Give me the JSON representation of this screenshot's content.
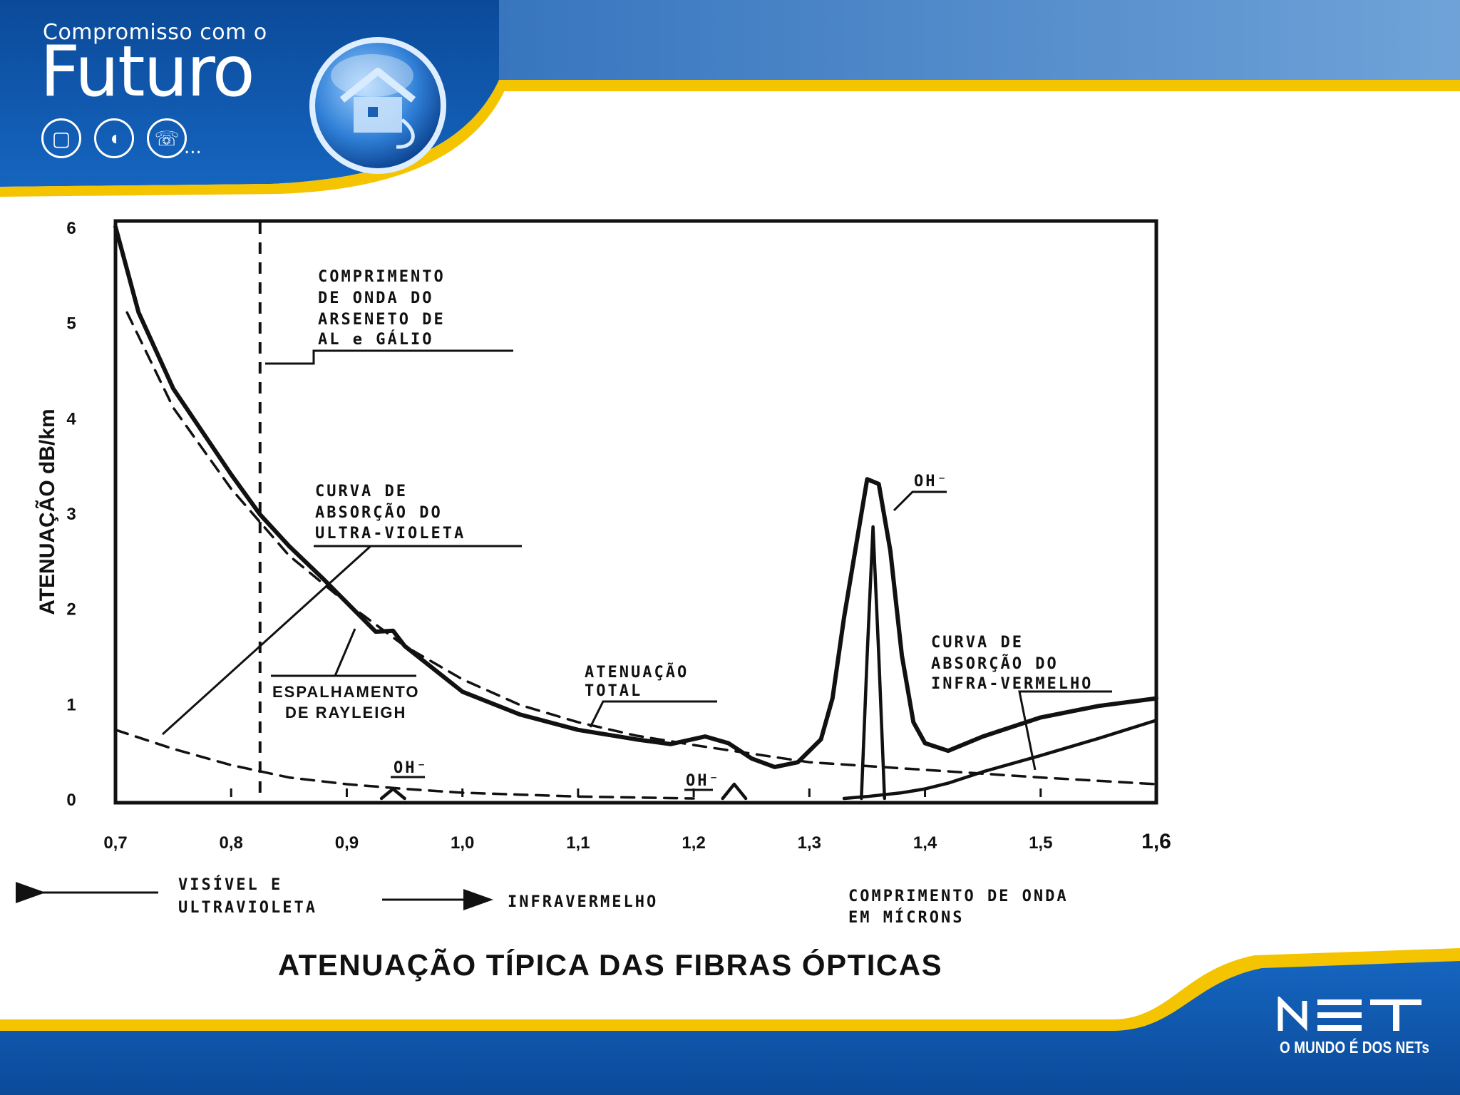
{
  "header": {
    "tagline": "Compromisso com o",
    "brand": "Futuro",
    "ellipsis": "...",
    "icons": [
      "tv-icon",
      "mouse-icon",
      "phone-icon"
    ],
    "orb_icon": "house-icon"
  },
  "footer": {
    "logo_text": "NET",
    "slogan": "O MUNDO É DOS NETs"
  },
  "colors": {
    "brand_blue": "#0d4f9c",
    "accent_yellow": "#f5c400",
    "curve": "#111111"
  },
  "chart_data": {
    "type": "line",
    "title": "ATENUAÇÃO TÍPICA DAS FIBRAS ÓPTICAS",
    "ylabel": "ATENUAÇÃO dB/km",
    "xlabel": "COMPRIMENTO DE ONDA EM MÍCRONS",
    "xlim": [
      0.7,
      1.6
    ],
    "ylim": [
      0,
      6
    ],
    "x_ticks": [
      "0,7",
      "0,8",
      "0,9",
      "1,0",
      "1,1",
      "1,2",
      "1,3",
      "1,4",
      "1,5",
      "1,6"
    ],
    "y_ticks": [
      "0",
      "1",
      "2",
      "3",
      "4",
      "5",
      "6"
    ],
    "vertical_marker_x": 0.825,
    "series": [
      {
        "id": "atenuacao-total",
        "style": "solid-bold",
        "x": [
          0.7,
          0.72,
          0.75,
          0.8,
          0.825,
          0.85,
          0.88,
          0.925,
          0.94,
          0.95,
          1.0,
          1.05,
          1.1,
          1.15,
          1.18,
          1.21,
          1.23,
          1.25,
          1.27,
          1.29,
          1.31,
          1.32,
          1.33,
          1.35,
          1.36,
          1.37,
          1.38,
          1.39,
          1.4,
          1.42,
          1.45,
          1.5,
          1.55,
          1.6
        ],
        "y": [
          6.0,
          5.1,
          4.3,
          3.4,
          2.98,
          2.65,
          2.3,
          1.75,
          1.76,
          1.6,
          1.12,
          0.88,
          0.72,
          0.62,
          0.57,
          0.65,
          0.58,
          0.42,
          0.33,
          0.38,
          0.62,
          1.05,
          1.9,
          3.35,
          3.3,
          2.6,
          1.5,
          0.8,
          0.58,
          0.5,
          0.65,
          0.85,
          0.97,
          1.05
        ]
      },
      {
        "id": "rayleigh",
        "style": "dashed",
        "x": [
          0.71,
          0.75,
          0.8,
          0.85,
          0.9,
          0.95,
          1.0,
          1.05,
          1.1,
          1.15,
          1.2,
          1.25,
          1.3,
          1.4,
          1.5,
          1.6
        ],
        "y": [
          5.1,
          4.1,
          3.25,
          2.55,
          2.05,
          1.6,
          1.25,
          0.98,
          0.8,
          0.66,
          0.56,
          0.47,
          0.38,
          0.3,
          0.22,
          0.15
        ]
      },
      {
        "id": "absorcao-uv",
        "style": "dashed",
        "x": [
          0.7,
          0.75,
          0.8,
          0.85,
          0.9,
          0.95,
          1.0,
          1.05,
          1.1,
          1.15,
          1.2
        ],
        "y": [
          0.72,
          0.52,
          0.35,
          0.22,
          0.15,
          0.1,
          0.06,
          0.04,
          0.02,
          0.01,
          0.0
        ]
      },
      {
        "id": "absorcao-ir",
        "style": "solid",
        "x": [
          1.33,
          1.35,
          1.38,
          1.4,
          1.42,
          1.45,
          1.5,
          1.55,
          1.6
        ],
        "y": [
          0.0,
          0.02,
          0.06,
          0.1,
          0.16,
          0.28,
          0.45,
          0.63,
          0.82
        ]
      },
      {
        "id": "oh-peak-inner",
        "style": "solid",
        "x": [
          1.345,
          1.35,
          1.355,
          1.36,
          1.365
        ],
        "y": [
          0.0,
          1.5,
          2.85,
          1.5,
          0.0
        ]
      },
      {
        "id": "oh-peak-094",
        "style": "solid",
        "x": [
          0.93,
          0.94,
          0.95
        ],
        "y": [
          0.0,
          0.1,
          0.0
        ]
      },
      {
        "id": "oh-peak-124",
        "style": "solid",
        "x": [
          1.225,
          1.235,
          1.245
        ],
        "y": [
          0.0,
          0.15,
          0.0
        ]
      }
    ],
    "annotations": [
      {
        "id": "arseneto",
        "lines": [
          "COMPRIMENTO",
          "DE ONDA DO",
          "ARSENETO DE",
          "AL e GÁLIO"
        ]
      },
      {
        "id": "uv",
        "lines": [
          "CURVA DE",
          "ABSORÇÃO DO",
          "ULTRA-VIOLETA"
        ]
      },
      {
        "id": "rayleigh",
        "lines": [
          "ESPALHAMENTO",
          "DE RAYLEIGH"
        ]
      },
      {
        "id": "total",
        "lines": [
          "ATENUAÇÃO",
          "TOTAL"
        ]
      },
      {
        "id": "ir",
        "lines": [
          "CURVA DE",
          "ABSORÇÃO DO",
          "INFRA-VERMELHO"
        ]
      },
      {
        "id": "oh-main",
        "lines": [
          "OH⁻"
        ]
      },
      {
        "id": "oh-094",
        "lines": [
          "OH⁻"
        ]
      },
      {
        "id": "oh-124",
        "lines": [
          "OH⁻"
        ]
      }
    ],
    "bands": {
      "visible": [
        "VISÍVEL E",
        "ULTRAVIOLETA"
      ],
      "infrared": "INFRAVERMELHO",
      "wavelength": [
        "COMPRIMENTO DE ONDA",
        "EM MÍCRONS"
      ]
    },
    "grid": false,
    "legend": "none"
  }
}
